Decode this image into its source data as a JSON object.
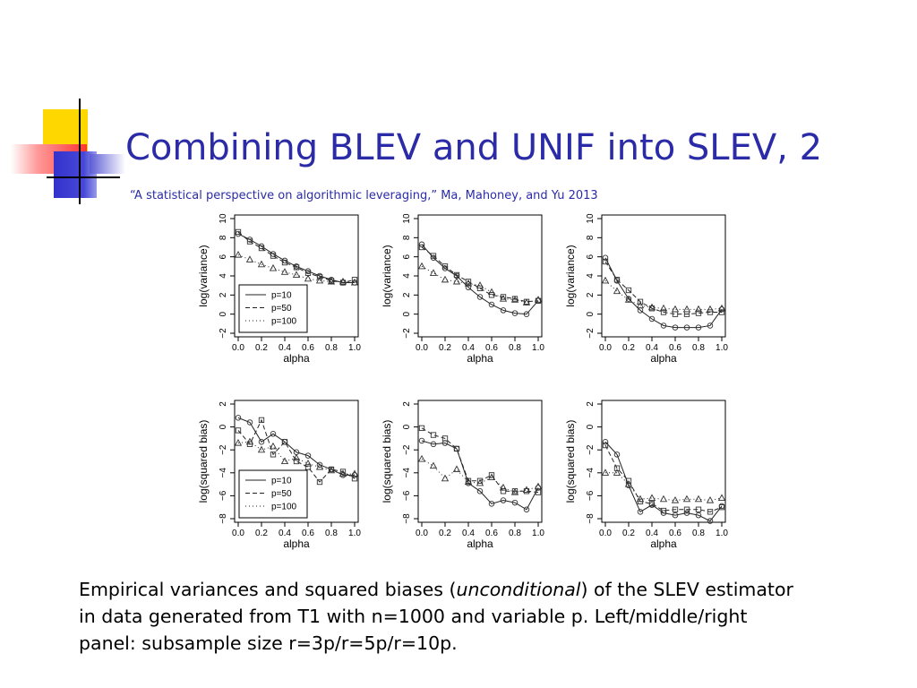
{
  "slide": {
    "title": "Combining BLEV and UNIF into SLEV, 2",
    "subtitle": "“A statistical perspective on algorithmic leveraging,” Ma, Mahoney, and Yu 2013",
    "caption_line1_pre": "Empirical variances and squared biases (",
    "caption_line1_em": "unconditional",
    "caption_line1_post": ") of the SLEV estimator",
    "caption_line2": "in data generated from T1 with n=1000 and variable p.  Left/middle/right",
    "caption_line3": "panel:  subsample size r=3p/r=5p/r=10p.",
    "colors": {
      "title": "#2b2ba8",
      "deco_yellow": "#ffd700",
      "deco_blue": "#3333cc",
      "deco_red": "#ff3333"
    }
  },
  "chart_data": [
    {
      "type": "line",
      "xlabel": "alpha",
      "ylabel": "log(variance)",
      "x": [
        0.0,
        0.1,
        0.2,
        0.3,
        0.4,
        0.5,
        0.6,
        0.7,
        0.8,
        0.9,
        1.0
      ],
      "xticks": [
        "0.0",
        "0.2",
        "0.4",
        "0.6",
        "0.8",
        "1.0"
      ],
      "ylim": [
        -2,
        10
      ],
      "yticks": [
        "−2",
        "0",
        "2",
        "4",
        "6",
        "8",
        "10"
      ],
      "legend": [
        "p=10",
        "p=50",
        "p=100"
      ],
      "legend_position": "bottom-left",
      "series": [
        {
          "name": "p=10",
          "values": [
            8.4,
            7.8,
            7.1,
            6.3,
            5.6,
            5.0,
            4.5,
            4.0,
            3.6,
            3.3,
            3.3
          ]
        },
        {
          "name": "p=50",
          "values": [
            8.6,
            7.6,
            6.9,
            6.1,
            5.4,
            4.9,
            4.3,
            3.9,
            3.5,
            3.3,
            3.6
          ]
        },
        {
          "name": "p=100",
          "values": [
            6.2,
            5.7,
            5.2,
            4.8,
            4.4,
            4.1,
            3.7,
            3.5,
            3.4,
            3.4,
            3.3
          ]
        }
      ]
    },
    {
      "type": "line",
      "xlabel": "alpha",
      "ylabel": "log(variance)",
      "x": [
        0.0,
        0.1,
        0.2,
        0.3,
        0.4,
        0.5,
        0.6,
        0.7,
        0.8,
        0.9,
        1.0
      ],
      "xticks": [
        "0.0",
        "0.2",
        "0.4",
        "0.6",
        "0.8",
        "1.0"
      ],
      "ylim": [
        -2,
        10
      ],
      "yticks": [
        "−2",
        "0",
        "2",
        "4",
        "6",
        "8",
        "10"
      ],
      "series": [
        {
          "name": "p=10",
          "values": [
            7.3,
            5.9,
            4.8,
            4.0,
            2.8,
            1.8,
            1.0,
            0.4,
            0.1,
            0.0,
            1.4
          ]
        },
        {
          "name": "p=50",
          "values": [
            7.0,
            6.1,
            5.0,
            4.1,
            3.4,
            2.7,
            2.0,
            1.8,
            1.6,
            1.3,
            1.4
          ]
        },
        {
          "name": "p=100",
          "values": [
            5.0,
            4.3,
            3.6,
            3.4,
            3.2,
            3.0,
            2.3,
            1.6,
            1.5,
            1.2,
            1.5
          ]
        }
      ]
    },
    {
      "type": "line",
      "xlabel": "alpha",
      "ylabel": "log(variance)",
      "x": [
        0.0,
        0.1,
        0.2,
        0.3,
        0.4,
        0.5,
        0.6,
        0.7,
        0.8,
        0.9,
        1.0
      ],
      "xticks": [
        "0.0",
        "0.2",
        "0.4",
        "0.6",
        "0.8",
        "1.0"
      ],
      "ylim": [
        -2,
        10
      ],
      "yticks": [
        "−2",
        "0",
        "2",
        "4",
        "6",
        "8",
        "10"
      ],
      "series": [
        {
          "name": "p=10",
          "values": [
            5.9,
            3.5,
            1.6,
            0.4,
            -0.5,
            -1.2,
            -1.4,
            -1.4,
            -1.4,
            -1.2,
            0.5
          ]
        },
        {
          "name": "p=50",
          "values": [
            5.5,
            3.6,
            2.5,
            1.3,
            0.6,
            0.2,
            0.0,
            0.0,
            0.1,
            0.2,
            0.2
          ]
        },
        {
          "name": "p=100",
          "values": [
            3.5,
            2.4,
            1.5,
            0.9,
            0.7,
            0.6,
            0.5,
            0.5,
            0.5,
            0.5,
            0.6
          ]
        }
      ]
    },
    {
      "type": "line",
      "xlabel": "alpha",
      "ylabel": "log(squared bias)",
      "x": [
        0.0,
        0.1,
        0.2,
        0.3,
        0.4,
        0.5,
        0.6,
        0.7,
        0.8,
        0.9,
        1.0
      ],
      "xticks": [
        "0.0",
        "0.2",
        "0.4",
        "0.6",
        "0.8",
        "1.0"
      ],
      "ylim": [
        -8,
        2
      ],
      "yticks": [
        "−8",
        "−6",
        "−4",
        "−2",
        "0",
        "2"
      ],
      "legend": [
        "p=10",
        "p=50",
        "p=100"
      ],
      "legend_position": "bottom-left",
      "series": [
        {
          "name": "p=10",
          "values": [
            0.8,
            0.4,
            -1.3,
            -0.6,
            -1.3,
            -2.2,
            -2.5,
            -3.3,
            -3.7,
            -4.2,
            -4.2
          ]
        },
        {
          "name": "p=50",
          "values": [
            -0.3,
            -1.5,
            0.6,
            -2.4,
            -1.3,
            -3.0,
            -3.5,
            -4.8,
            -3.7,
            -3.9,
            -4.5
          ]
        },
        {
          "name": "p=100",
          "values": [
            -1.4,
            -1.3,
            -2.0,
            -1.7,
            -3.0,
            -2.7,
            -3.2,
            -3.5,
            -3.8,
            -4.1,
            -4.1
          ]
        }
      ]
    },
    {
      "type": "line",
      "xlabel": "alpha",
      "ylabel": "log(squared bias)",
      "x": [
        0.0,
        0.1,
        0.2,
        0.3,
        0.4,
        0.5,
        0.6,
        0.7,
        0.8,
        0.9,
        1.0
      ],
      "xticks": [
        "0.0",
        "0.2",
        "0.4",
        "0.6",
        "0.8",
        "1.0"
      ],
      "ylim": [
        -8,
        2
      ],
      "yticks": [
        "−8",
        "−6",
        "−4",
        "−2",
        "0",
        "2"
      ],
      "series": [
        {
          "name": "p=10",
          "values": [
            -1.2,
            -1.5,
            -1.4,
            -1.9,
            -4.9,
            -5.6,
            -6.7,
            -6.4,
            -6.6,
            -7.2,
            -5.3
          ]
        },
        {
          "name": "p=50",
          "values": [
            -0.1,
            -0.7,
            -1.0,
            -1.9,
            -4.7,
            -4.7,
            -4.2,
            -5.6,
            -5.6,
            -5.6,
            -5.7
          ]
        },
        {
          "name": "p=100",
          "values": [
            -2.8,
            -3.4,
            -4.5,
            -3.7,
            -4.8,
            -4.9,
            -4.4,
            -5.3,
            -5.7,
            -5.5,
            -5.2
          ]
        }
      ]
    },
    {
      "type": "line",
      "xlabel": "alpha",
      "ylabel": "log(squared bias)",
      "x": [
        0.0,
        0.1,
        0.2,
        0.3,
        0.4,
        0.5,
        0.6,
        0.7,
        0.8,
        0.9,
        1.0
      ],
      "xticks": [
        "0.0",
        "0.2",
        "0.4",
        "0.6",
        "0.8",
        "1.0"
      ],
      "ylim": [
        -8,
        2
      ],
      "yticks": [
        "−8",
        "−6",
        "−4",
        "−2",
        "0",
        "2"
      ],
      "series": [
        {
          "name": "p=10",
          "values": [
            -1.3,
            -2.4,
            -5.1,
            -7.4,
            -6.8,
            -7.5,
            -7.7,
            -7.5,
            -7.7,
            -8.2,
            -6.9
          ]
        },
        {
          "name": "p=50",
          "values": [
            -1.6,
            -3.6,
            -4.7,
            -6.5,
            -6.7,
            -7.3,
            -7.2,
            -7.2,
            -7.2,
            -7.4,
            -7.0
          ]
        },
        {
          "name": "p=100",
          "values": [
            -4.0,
            -4.0,
            -5.0,
            -6.3,
            -6.2,
            -6.3,
            -6.4,
            -6.3,
            -6.3,
            -6.4,
            -6.2
          ]
        }
      ]
    }
  ]
}
